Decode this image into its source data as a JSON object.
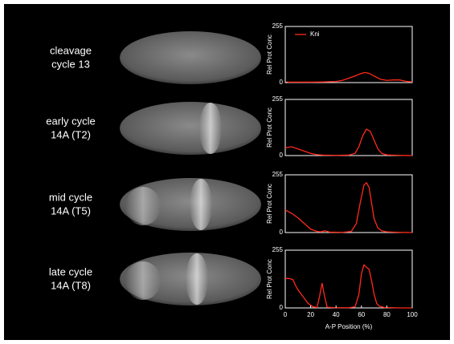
{
  "chart_data": [
    {
      "type": "line",
      "label": [
        "cleavage",
        "cycle 13"
      ],
      "ylabel": "Rel Prot Conc",
      "xlim": [
        0,
        100
      ],
      "ylim": [
        0,
        255
      ],
      "yticks": [
        0,
        255
      ],
      "legend": true,
      "series": [
        {
          "name": "Kni",
          "color": "#ff2a1a",
          "x": [
            0,
            10,
            20,
            30,
            40,
            45,
            50,
            55,
            60,
            63,
            66,
            70,
            75,
            80,
            85,
            90,
            95,
            100
          ],
          "values": [
            2,
            2,
            2,
            3,
            5,
            10,
            20,
            30,
            42,
            46,
            42,
            30,
            15,
            10,
            12,
            12,
            6,
            3
          ]
        }
      ]
    },
    {
      "type": "line",
      "label": [
        "early cycle",
        "14A (T2)"
      ],
      "ylabel": "Rel Prot Conc",
      "xlim": [
        0,
        100
      ],
      "ylim": [
        0,
        255
      ],
      "yticks": [
        0,
        255
      ],
      "series": [
        {
          "color": "#ff2a1a",
          "x": [
            0,
            5,
            10,
            15,
            20,
            25,
            30,
            40,
            50,
            55,
            58,
            61,
            64,
            67,
            70,
            73,
            76,
            80,
            90,
            100
          ],
          "values": [
            35,
            40,
            30,
            20,
            10,
            4,
            2,
            1,
            2,
            10,
            40,
            90,
            120,
            110,
            70,
            30,
            10,
            3,
            1,
            0
          ]
        }
      ]
    },
    {
      "type": "line",
      "label": [
        "mid cycle",
        "14A (T5)"
      ],
      "ylabel": "Rel Prot Conc",
      "xlim": [
        0,
        100
      ],
      "ylim": [
        0,
        255
      ],
      "yticks": [
        0,
        255
      ],
      "series": [
        {
          "color": "#ff2a1a",
          "x": [
            0,
            5,
            10,
            15,
            20,
            25,
            28,
            31,
            35,
            45,
            52,
            56,
            59,
            62,
            64,
            66,
            68,
            70,
            73,
            76,
            80,
            90,
            100
          ],
          "values": [
            100,
            85,
            65,
            40,
            15,
            5,
            3,
            8,
            2,
            1,
            5,
            40,
            130,
            210,
            220,
            200,
            130,
            60,
            20,
            8,
            3,
            1,
            0
          ]
        }
      ]
    },
    {
      "type": "line",
      "label": [
        "late cycle",
        "14A (T8)"
      ],
      "ylabel": "Rel Prot Conc",
      "xlabel": "A-P Position (%)",
      "xlim": [
        0,
        100
      ],
      "ylim": [
        0,
        255
      ],
      "yticks": [
        0,
        255
      ],
      "xticks": [
        0,
        20,
        40,
        60,
        80,
        100
      ],
      "series": [
        {
          "color": "#ff2a1a",
          "x": [
            0,
            3,
            6,
            8,
            10,
            14,
            18,
            22,
            25,
            27,
            29,
            31,
            33,
            40,
            50,
            55,
            58,
            60,
            62,
            64,
            66,
            68,
            70,
            72,
            74,
            78,
            90,
            100
          ],
          "values": [
            130,
            130,
            125,
            100,
            80,
            50,
            20,
            5,
            2,
            50,
            110,
            50,
            3,
            1,
            1,
            5,
            60,
            150,
            190,
            180,
            170,
            120,
            60,
            20,
            8,
            2,
            0,
            0
          ]
        }
      ]
    }
  ]
}
